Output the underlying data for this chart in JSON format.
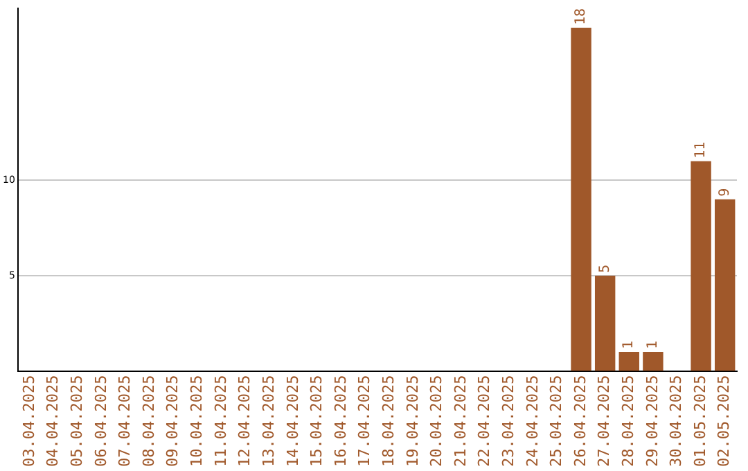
{
  "chart_data": {
    "type": "bar",
    "categories": [
      "03.04.2025",
      "04.04.2025",
      "05.04.2025",
      "06.04.2025",
      "07.04.2025",
      "08.04.2025",
      "09.04.2025",
      "10.04.2025",
      "11.04.2025",
      "12.04.2025",
      "13.04.2025",
      "14.04.2025",
      "15.04.2025",
      "16.04.2025",
      "17.04.2025",
      "18.04.2025",
      "19.04.2025",
      "20.04.2025",
      "21.04.2025",
      "22.04.2025",
      "23.04.2025",
      "24.04.2025",
      "25.04.2025",
      "26.04.2025",
      "27.04.2025",
      "28.04.2025",
      "29.04.2025",
      "30.04.2025",
      "01.05.2025",
      "02.05.2025"
    ],
    "values": [
      0,
      0,
      0,
      0,
      0,
      0,
      0,
      0,
      0,
      0,
      0,
      0,
      0,
      0,
      0,
      0,
      0,
      0,
      0,
      0,
      0,
      0,
      0,
      18,
      5,
      1,
      1,
      0,
      11,
      9
    ],
    "value_labels": [
      null,
      null,
      null,
      null,
      null,
      null,
      null,
      null,
      null,
      null,
      null,
      null,
      null,
      null,
      null,
      null,
      null,
      null,
      null,
      null,
      null,
      null,
      null,
      "18",
      "5",
      "1",
      "1",
      null,
      "11",
      "9"
    ],
    "color": "#a0582a",
    "ylim": [
      0,
      19
    ],
    "yticks": [
      5,
      10
    ],
    "grid": "y"
  }
}
